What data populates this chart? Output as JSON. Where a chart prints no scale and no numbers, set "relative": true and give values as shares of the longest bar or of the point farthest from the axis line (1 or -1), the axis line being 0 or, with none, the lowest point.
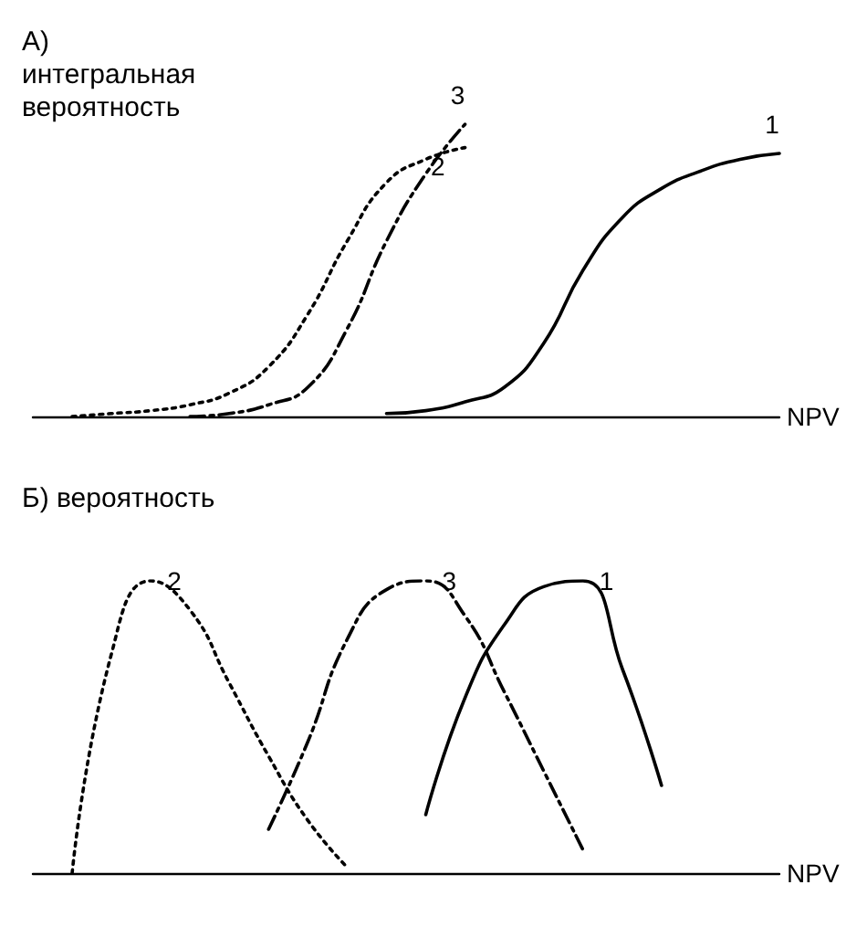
{
  "chart_data": [
    {
      "type": "line",
      "ylabel": "А) интегральная вероятность",
      "xlabel": "NPV",
      "relative": true,
      "marker": "none",
      "categories": [
        null,
        null,
        null,
        null,
        null,
        null,
        null,
        null,
        null,
        null,
        null,
        null,
        null,
        null,
        null,
        null,
        null,
        null,
        null,
        null
      ],
      "series": [
        {
          "name": "1",
          "color": "#000000",
          "line_style": "solid",
          "values": [
            null,
            null,
            null,
            null,
            null,
            null,
            null,
            null,
            null,
            0.01,
            0.02,
            0.05,
            0.1,
            0.25,
            0.5,
            0.68,
            0.78,
            0.84,
            0.88,
            0.9
          ]
        },
        {
          "name": "2",
          "color": "#000000",
          "line_style": "dotted",
          "values": [
            null,
            0,
            0.01,
            0.02,
            0.04,
            0.08,
            0.17,
            0.35,
            0.6,
            0.8,
            0.88,
            0.92,
            null,
            null,
            null,
            null,
            null,
            null,
            null,
            null
          ]
        },
        {
          "name": "3",
          "color": "#000000",
          "line_style": "dashed",
          "values": [
            null,
            null,
            null,
            null,
            0,
            0.01,
            0.04,
            0.1,
            0.3,
            0.6,
            0.83,
            1.0,
            null,
            null,
            null,
            null,
            null,
            null,
            null,
            null
          ]
        }
      ]
    },
    {
      "type": "line",
      "ylabel": "Б) вероятность",
      "xlabel": "NPV",
      "relative": true,
      "marker": "none",
      "categories": [
        null,
        null,
        null,
        null,
        null,
        null,
        null,
        null,
        null,
        null,
        null,
        null,
        null,
        null,
        null,
        null,
        null,
        null,
        null,
        null
      ],
      "series": [
        {
          "name": "1",
          "color": "#000000",
          "line_style": "solid",
          "values": [
            null,
            null,
            null,
            null,
            null,
            null,
            null,
            null,
            null,
            null,
            0.2,
            0.6,
            0.85,
            0.98,
            1.0,
            0.7,
            0.3,
            null,
            null,
            null
          ]
        },
        {
          "name": "2",
          "color": "#000000",
          "line_style": "dotted",
          "values": [
            null,
            0,
            0.75,
            1.0,
            0.9,
            0.65,
            0.4,
            0.18,
            0.02,
            null,
            null,
            null,
            null,
            null,
            null,
            null,
            null,
            null,
            null,
            null
          ]
        },
        {
          "name": "3",
          "color": "#000000",
          "line_style": "dashed",
          "values": [
            null,
            null,
            null,
            null,
            null,
            null,
            0.15,
            0.45,
            0.8,
            0.97,
            1.0,
            0.88,
            0.62,
            0.35,
            0.08,
            null,
            null,
            null,
            null,
            null
          ]
        }
      ]
    }
  ]
}
